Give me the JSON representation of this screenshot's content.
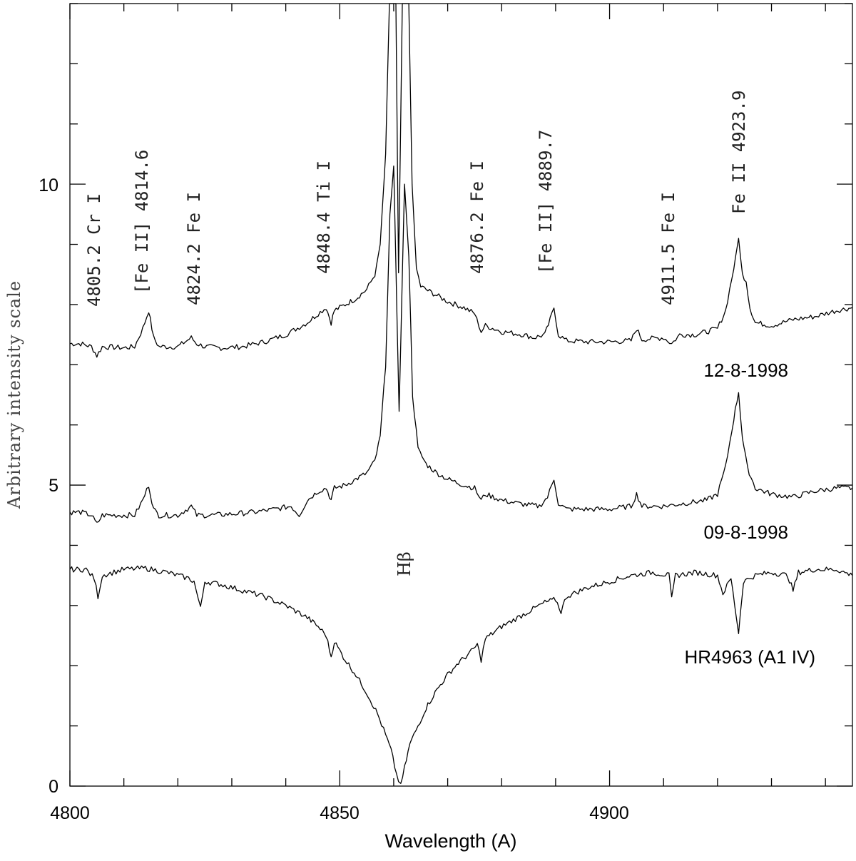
{
  "chart_data": {
    "type": "line",
    "title": "",
    "xlabel": "Wavelength (A)",
    "ylabel": "Arbitrary intensity scale",
    "xlim": [
      4800,
      4945
    ],
    "ylim": [
      0,
      13.0
    ],
    "xticks": [
      4800,
      4850,
      4900
    ],
    "yticks": [
      0,
      5,
      10
    ],
    "grid": false,
    "legend": "none",
    "series": [
      {
        "name": "12-8-1998",
        "baseline": 7.3,
        "offset": 0,
        "points": [
          [
            4800,
            7.35
          ],
          [
            4802,
            7.35
          ],
          [
            4804,
            7.3
          ],
          [
            4805,
            7.15
          ],
          [
            4806,
            7.3
          ],
          [
            4810,
            7.28
          ],
          [
            4812,
            7.3
          ],
          [
            4813.5,
            7.6
          ],
          [
            4814.6,
            7.9
          ],
          [
            4815.5,
            7.45
          ],
          [
            4816.5,
            7.3
          ],
          [
            4820,
            7.3
          ],
          [
            4822.5,
            7.45
          ],
          [
            4823.5,
            7.35
          ],
          [
            4825,
            7.3
          ],
          [
            4828,
            7.28
          ],
          [
            4832,
            7.3
          ],
          [
            4836,
            7.38
          ],
          [
            4840,
            7.5
          ],
          [
            4844,
            7.7
          ],
          [
            4846,
            7.85
          ],
          [
            4847.5,
            7.95
          ],
          [
            4848.4,
            7.7
          ],
          [
            4849,
            7.9
          ],
          [
            4851,
            8.0
          ],
          [
            4853,
            8.1
          ],
          [
            4855,
            8.25
          ],
          [
            4856.5,
            8.5
          ],
          [
            4857.5,
            9.0
          ],
          [
            4858.5,
            10.5
          ],
          [
            4859.2,
            13.0
          ],
          [
            4860.4,
            13.0
          ],
          [
            4860.9,
            8.5
          ],
          [
            4861.6,
            13.0
          ],
          [
            4862.8,
            13.0
          ],
          [
            4863.4,
            10.0
          ],
          [
            4864.2,
            8.6
          ],
          [
            4865,
            8.3
          ],
          [
            4867,
            8.2
          ],
          [
            4870,
            8.05
          ],
          [
            4873,
            7.95
          ],
          [
            4875,
            7.85
          ],
          [
            4876.2,
            7.55
          ],
          [
            4877,
            7.65
          ],
          [
            4880,
            7.55
          ],
          [
            4884,
            7.5
          ],
          [
            4886,
            7.45
          ],
          [
            4888,
            7.5
          ],
          [
            4889,
            7.75
          ],
          [
            4889.7,
            7.95
          ],
          [
            4890.5,
            7.5
          ],
          [
            4892,
            7.4
          ],
          [
            4896,
            7.38
          ],
          [
            4900,
            7.38
          ],
          [
            4904,
            7.4
          ],
          [
            4905,
            7.6
          ],
          [
            4906,
            7.42
          ],
          [
            4910,
            7.45
          ],
          [
            4911.5,
            7.35
          ],
          [
            4913,
            7.5
          ],
          [
            4916,
            7.5
          ],
          [
            4918,
            7.55
          ],
          [
            4920,
            7.6
          ],
          [
            4921.5,
            7.9
          ],
          [
            4923,
            8.6
          ],
          [
            4923.9,
            9.1
          ],
          [
            4924.6,
            8.5
          ],
          [
            4925.3,
            8.4
          ],
          [
            4926,
            7.95
          ],
          [
            4927,
            7.7
          ],
          [
            4930,
            7.65
          ],
          [
            4934,
            7.75
          ],
          [
            4938,
            7.8
          ],
          [
            4942,
            7.9
          ],
          [
            4945,
            7.95
          ]
        ]
      },
      {
        "name": "09-8-1998",
        "baseline": 4.5,
        "offset": 0,
        "points": [
          [
            4800,
            4.55
          ],
          [
            4802,
            4.55
          ],
          [
            4804,
            4.5
          ],
          [
            4805,
            4.35
          ],
          [
            4806,
            4.5
          ],
          [
            4810,
            4.5
          ],
          [
            4812,
            4.5
          ],
          [
            4813.5,
            4.75
          ],
          [
            4814.6,
            5.0
          ],
          [
            4815.5,
            4.6
          ],
          [
            4816.5,
            4.5
          ],
          [
            4820,
            4.5
          ],
          [
            4822.5,
            4.65
          ],
          [
            4823.5,
            4.5
          ],
          [
            4826,
            4.5
          ],
          [
            4830,
            4.52
          ],
          [
            4834,
            4.55
          ],
          [
            4838,
            4.6
          ],
          [
            4841,
            4.65
          ],
          [
            4842.5,
            4.5
          ],
          [
            4844,
            4.75
          ],
          [
            4846,
            4.9
          ],
          [
            4847.5,
            4.95
          ],
          [
            4848.4,
            4.75
          ],
          [
            4849,
            4.95
          ],
          [
            4851,
            5.0
          ],
          [
            4853,
            5.1
          ],
          [
            4855,
            5.2
          ],
          [
            4856.5,
            5.4
          ],
          [
            4857.5,
            5.8
          ],
          [
            4858.5,
            7.0
          ],
          [
            4859.3,
            9.5
          ],
          [
            4860,
            10.3
          ],
          [
            4861,
            6.2
          ],
          [
            4862,
            10.0
          ],
          [
            4862.8,
            8.8
          ],
          [
            4863.5,
            6.5
          ],
          [
            4864.5,
            5.6
          ],
          [
            4866,
            5.35
          ],
          [
            4868,
            5.2
          ],
          [
            4870,
            5.1
          ],
          [
            4873,
            5.0
          ],
          [
            4875,
            4.95
          ],
          [
            4876.2,
            4.75
          ],
          [
            4877,
            4.85
          ],
          [
            4880,
            4.75
          ],
          [
            4884,
            4.68
          ],
          [
            4887,
            4.65
          ],
          [
            4888.5,
            4.8
          ],
          [
            4889.7,
            5.1
          ],
          [
            4890.5,
            4.7
          ],
          [
            4892,
            4.6
          ],
          [
            4896,
            4.6
          ],
          [
            4900,
            4.6
          ],
          [
            4904,
            4.65
          ],
          [
            4905,
            4.85
          ],
          [
            4906,
            4.65
          ],
          [
            4910,
            4.65
          ],
          [
            4914,
            4.7
          ],
          [
            4918,
            4.75
          ],
          [
            4920,
            4.85
          ],
          [
            4921.5,
            5.3
          ],
          [
            4923,
            6.1
          ],
          [
            4923.9,
            6.55
          ],
          [
            4924.6,
            5.8
          ],
          [
            4925.5,
            5.3
          ],
          [
            4927,
            4.95
          ],
          [
            4930,
            4.85
          ],
          [
            4934,
            4.8
          ],
          [
            4938,
            4.9
          ],
          [
            4942,
            4.95
          ],
          [
            4945,
            4.95
          ]
        ]
      },
      {
        "name": "HR4963 (A1 IV)",
        "baseline": 3.6,
        "offset": 0,
        "points": [
          [
            4800,
            3.6
          ],
          [
            4803,
            3.6
          ],
          [
            4804.5,
            3.45
          ],
          [
            4805.2,
            3.15
          ],
          [
            4806,
            3.5
          ],
          [
            4810,
            3.6
          ],
          [
            4814,
            3.62
          ],
          [
            4818,
            3.55
          ],
          [
            4822,
            3.45
          ],
          [
            4823,
            3.4
          ],
          [
            4824.2,
            2.95
          ],
          [
            4825,
            3.4
          ],
          [
            4828,
            3.35
          ],
          [
            4832,
            3.25
          ],
          [
            4836,
            3.15
          ],
          [
            4840,
            3.0
          ],
          [
            4844,
            2.8
          ],
          [
            4846,
            2.65
          ],
          [
            4847.5,
            2.5
          ],
          [
            4848.4,
            2.15
          ],
          [
            4849,
            2.4
          ],
          [
            4851,
            2.1
          ],
          [
            4853,
            1.85
          ],
          [
            4855,
            1.55
          ],
          [
            4857,
            1.2
          ],
          [
            4858.5,
            0.85
          ],
          [
            4859.5,
            0.6
          ],
          [
            4860.5,
            0.2
          ],
          [
            4861.3,
            0.0
          ],
          [
            4862,
            0.3
          ],
          [
            4863,
            0.7
          ],
          [
            4864.5,
            1.0
          ],
          [
            4866,
            1.3
          ],
          [
            4868,
            1.6
          ],
          [
            4870,
            1.85
          ],
          [
            4872,
            2.05
          ],
          [
            4874,
            2.2
          ],
          [
            4875.5,
            2.35
          ],
          [
            4876.2,
            2.1
          ],
          [
            4877,
            2.45
          ],
          [
            4880,
            2.65
          ],
          [
            4884,
            2.85
          ],
          [
            4888,
            3.05
          ],
          [
            4890,
            3.1
          ],
          [
            4891,
            2.9
          ],
          [
            4892,
            3.15
          ],
          [
            4896,
            3.3
          ],
          [
            4900,
            3.4
          ],
          [
            4904,
            3.5
          ],
          [
            4908,
            3.55
          ],
          [
            4911,
            3.5
          ],
          [
            4911.5,
            3.1
          ],
          [
            4912.2,
            3.5
          ],
          [
            4916,
            3.55
          ],
          [
            4920,
            3.5
          ],
          [
            4921,
            3.2
          ],
          [
            4922.5,
            3.45
          ],
          [
            4923.9,
            2.55
          ],
          [
            4924.8,
            3.4
          ],
          [
            4927,
            3.5
          ],
          [
            4930,
            3.55
          ],
          [
            4933,
            3.5
          ],
          [
            4934,
            3.25
          ],
          [
            4935,
            3.55
          ],
          [
            4938,
            3.6
          ],
          [
            4942,
            3.6
          ],
          [
            4945,
            3.5
          ]
        ]
      }
    ],
    "annotations": [
      {
        "text": "4805.2 Cr I",
        "x": 4805.2
      },
      {
        "text": "[Fe II] 4814.6",
        "x": 4814.6
      },
      {
        "text": "4824.2 Fe I",
        "x": 4824.2
      },
      {
        "text": "4848.4 Ti I",
        "x": 4848.4
      },
      {
        "text": "4876.2 Fe I",
        "x": 4876.2
      },
      {
        "text": "[Fe II] 4889.7",
        "x": 4889.7
      },
      {
        "text": "4911.5 Fe I",
        "x": 4911.5
      },
      {
        "text": "Fe II 4923.9",
        "x": 4923.9
      },
      {
        "text": "Hβ",
        "x": 4861.3
      }
    ]
  },
  "texts": {
    "x_ticks": [
      "4800",
      "4850",
      "4900"
    ],
    "y_ticks": [
      "0",
      "5",
      "10"
    ],
    "xlabel": "Wavelength (A)",
    "ylabel": "Arbitrary intensity scale",
    "series_labels": [
      "12-8-1998",
      "09-8-1998",
      "HR4963 (A1 IV)"
    ],
    "hbeta": "Hβ"
  }
}
